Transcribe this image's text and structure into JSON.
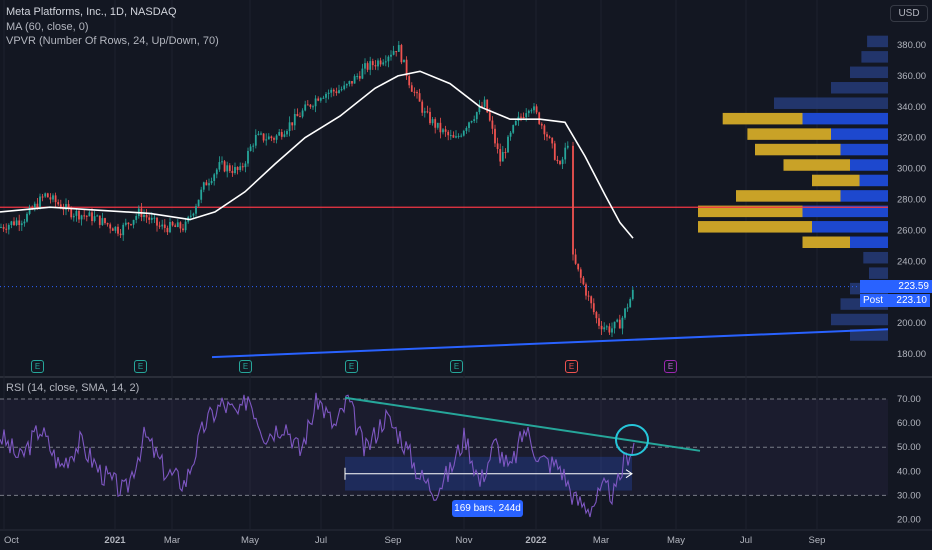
{
  "header": {
    "title": "Meta Platforms, Inc., 1D, NASDAQ",
    "ma_label": "MA (60, close, 0)",
    "vpvr_label": "VPVR (Number Of Rows, 24, Up/Down, 70)",
    "rsi_label": "RSI (14, close, SMA, 14, 2)",
    "currency": "USD"
  },
  "price_labels": {
    "last": "223.59",
    "post_label": "Post",
    "post_value": "223.10"
  },
  "range_measure": "169 bars, 244d",
  "events": [
    "E",
    "E",
    "E",
    "E",
    "E",
    "E",
    "E"
  ],
  "colors": {
    "up": "#26a69a",
    "down": "#ef5350",
    "ma": "#ffffff",
    "hline": "#f23645",
    "trend": "#2962ff",
    "rsi": "#7e57c2",
    "rsi_trend": "#26a69a"
  },
  "chart_data": [
    {
      "type": "candlestick",
      "title": "Meta Platforms, Inc., 1D, NASDAQ",
      "x_ticks": [
        "Oct",
        "2021",
        "Mar",
        "May",
        "Jul",
        "Sep",
        "Nov",
        "2022",
        "Mar",
        "May",
        "Jul",
        "Sep"
      ],
      "y_ticks": [
        380,
        360,
        340,
        320,
        300,
        280,
        260,
        240,
        200,
        180
      ],
      "ylim": [
        175,
        388
      ],
      "price_path_anchors": [
        {
          "x": 0,
          "y": 262
        },
        {
          "x": 25,
          "y": 268
        },
        {
          "x": 45,
          "y": 283
        },
        {
          "x": 70,
          "y": 272
        },
        {
          "x": 95,
          "y": 268
        },
        {
          "x": 120,
          "y": 260
        },
        {
          "x": 140,
          "y": 272
        },
        {
          "x": 160,
          "y": 262
        },
        {
          "x": 185,
          "y": 262
        },
        {
          "x": 205,
          "y": 290
        },
        {
          "x": 220,
          "y": 302
        },
        {
          "x": 240,
          "y": 298
        },
        {
          "x": 255,
          "y": 320
        },
        {
          "x": 275,
          "y": 320
        },
        {
          "x": 300,
          "y": 335
        },
        {
          "x": 320,
          "y": 348
        },
        {
          "x": 345,
          "y": 352
        },
        {
          "x": 365,
          "y": 365
        },
        {
          "x": 380,
          "y": 370
        },
        {
          "x": 398,
          "y": 379
        },
        {
          "x": 410,
          "y": 355
        },
        {
          "x": 425,
          "y": 335
        },
        {
          "x": 440,
          "y": 325
        },
        {
          "x": 455,
          "y": 318
        },
        {
          "x": 470,
          "y": 332
        },
        {
          "x": 485,
          "y": 342
        },
        {
          "x": 500,
          "y": 305
        },
        {
          "x": 515,
          "y": 328
        },
        {
          "x": 530,
          "y": 342
        },
        {
          "x": 545,
          "y": 325
        },
        {
          "x": 560,
          "y": 300
        },
        {
          "x": 568,
          "y": 318
        },
        {
          "x": 572,
          "y": 243
        },
        {
          "x": 585,
          "y": 222
        },
        {
          "x": 598,
          "y": 200
        },
        {
          "x": 610,
          "y": 196
        },
        {
          "x": 620,
          "y": 200
        },
        {
          "x": 635,
          "y": 223
        }
      ],
      "ma_line": [
        {
          "x": 0,
          "y": 272
        },
        {
          "x": 50,
          "y": 275
        },
        {
          "x": 100,
          "y": 273
        },
        {
          "x": 150,
          "y": 271
        },
        {
          "x": 190,
          "y": 267
        },
        {
          "x": 215,
          "y": 272
        },
        {
          "x": 245,
          "y": 285
        },
        {
          "x": 275,
          "y": 303
        },
        {
          "x": 305,
          "y": 320
        },
        {
          "x": 340,
          "y": 334
        },
        {
          "x": 375,
          "y": 352
        },
        {
          "x": 398,
          "y": 360
        },
        {
          "x": 420,
          "y": 363
        },
        {
          "x": 450,
          "y": 355
        },
        {
          "x": 480,
          "y": 340
        },
        {
          "x": 510,
          "y": 332
        },
        {
          "x": 540,
          "y": 332
        },
        {
          "x": 565,
          "y": 330
        },
        {
          "x": 585,
          "y": 308
        },
        {
          "x": 605,
          "y": 283
        },
        {
          "x": 620,
          "y": 265
        },
        {
          "x": 633,
          "y": 255
        }
      ],
      "support_line": [
        {
          "x": 212,
          "y": 178
        },
        {
          "x": 888,
          "y": 196
        }
      ],
      "horizontal_level": 275,
      "last_price": 223.59,
      "post_price": 223.1,
      "volume_profile": {
        "rows": [
          {
            "price": 382,
            "up": 0.0,
            "down": 0.11
          },
          {
            "price": 372,
            "up": 0.0,
            "down": 0.14
          },
          {
            "price": 362,
            "up": 0.0,
            "down": 0.2
          },
          {
            "price": 352,
            "up": 0.0,
            "down": 0.3
          },
          {
            "price": 342,
            "up": 0.0,
            "down": 0.6
          },
          {
            "price": 332,
            "up": 0.42,
            "down": 0.45
          },
          {
            "price": 322,
            "up": 0.44,
            "down": 0.3
          },
          {
            "price": 312,
            "up": 0.45,
            "down": 0.25
          },
          {
            "price": 302,
            "up": 0.35,
            "down": 0.2
          },
          {
            "price": 292,
            "up": 0.25,
            "down": 0.15
          },
          {
            "price": 282,
            "up": 0.55,
            "down": 0.25
          },
          {
            "price": 272,
            "up": 0.55,
            "down": 0.45
          },
          {
            "price": 262,
            "up": 0.6,
            "down": 0.4
          },
          {
            "price": 252,
            "up": 0.25,
            "down": 0.2
          },
          {
            "price": 242,
            "up": 0.0,
            "down": 0.13
          },
          {
            "price": 232,
            "up": 0.0,
            "down": 0.1
          },
          {
            "price": 222,
            "up": 0.0,
            "down": 0.2
          },
          {
            "price": 212,
            "up": 0.0,
            "down": 0.25
          },
          {
            "price": 202,
            "up": 0.0,
            "down": 0.3
          },
          {
            "price": 192,
            "up": 0.0,
            "down": 0.2
          }
        ]
      }
    },
    {
      "type": "line",
      "title": "RSI (14, close, SMA, 14, 2)",
      "y_ticks": [
        70.0,
        60.0,
        50.0,
        40.0,
        30.0,
        20.0
      ],
      "ylim": [
        18,
        74
      ],
      "bands": [
        70,
        50,
        30
      ],
      "rsi_anchors": [
        {
          "x": 0,
          "y": 55
        },
        {
          "x": 20,
          "y": 45
        },
        {
          "x": 40,
          "y": 58
        },
        {
          "x": 60,
          "y": 42
        },
        {
          "x": 80,
          "y": 52
        },
        {
          "x": 100,
          "y": 40
        },
        {
          "x": 125,
          "y": 31
        },
        {
          "x": 145,
          "y": 55
        },
        {
          "x": 165,
          "y": 40
        },
        {
          "x": 185,
          "y": 35
        },
        {
          "x": 205,
          "y": 60
        },
        {
          "x": 222,
          "y": 68
        },
        {
          "x": 240,
          "y": 63
        },
        {
          "x": 248,
          "y": 72
        },
        {
          "x": 265,
          "y": 55
        },
        {
          "x": 285,
          "y": 60
        },
        {
          "x": 300,
          "y": 48
        },
        {
          "x": 318,
          "y": 70
        },
        {
          "x": 335,
          "y": 58
        },
        {
          "x": 348,
          "y": 70
        },
        {
          "x": 365,
          "y": 48
        },
        {
          "x": 385,
          "y": 63
        },
        {
          "x": 400,
          "y": 55
        },
        {
          "x": 420,
          "y": 38
        },
        {
          "x": 435,
          "y": 32
        },
        {
          "x": 450,
          "y": 40
        },
        {
          "x": 465,
          "y": 55
        },
        {
          "x": 480,
          "y": 35
        },
        {
          "x": 495,
          "y": 52
        },
        {
          "x": 510,
          "y": 40
        },
        {
          "x": 525,
          "y": 58
        },
        {
          "x": 540,
          "y": 45
        },
        {
          "x": 560,
          "y": 42
        },
        {
          "x": 575,
          "y": 28
        },
        {
          "x": 590,
          "y": 25
        },
        {
          "x": 605,
          "y": 33
        },
        {
          "x": 615,
          "y": 30
        },
        {
          "x": 625,
          "y": 45
        },
        {
          "x": 635,
          "y": 52
        }
      ],
      "trendline": [
        {
          "x": 345,
          "y": 70.5
        },
        {
          "x": 700,
          "y": 48.5
        }
      ],
      "range_box": {
        "x0": 345,
        "x1": 632,
        "y_low": 32,
        "y_high": 46
      },
      "highlight_circle": {
        "x": 632,
        "y": 53
      }
    }
  ]
}
